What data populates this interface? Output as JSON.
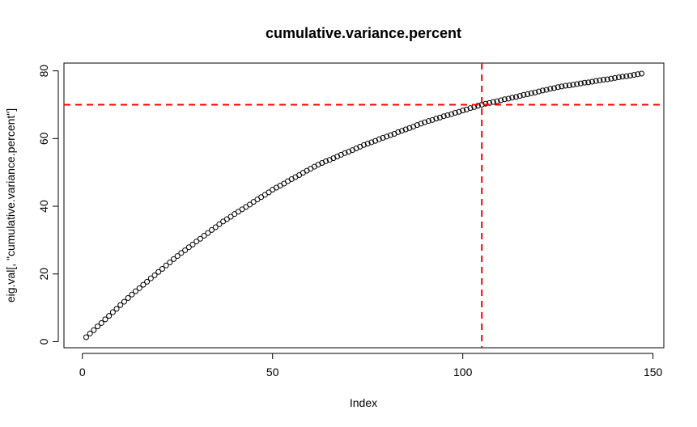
{
  "chart_data": {
    "type": "scatter",
    "title": "cumulative.variance.percent",
    "x_label": "Index",
    "y_label": "eig.val[, \"cumulative.variance.percent\"]",
    "x": [
      1,
      2,
      3,
      4,
      5,
      6,
      7,
      8,
      9,
      10,
      11,
      12,
      13,
      14,
      15,
      16,
      17,
      18,
      19,
      20,
      21,
      22,
      23,
      24,
      25,
      26,
      27,
      28,
      29,
      30,
      31,
      32,
      33,
      34,
      35,
      36,
      37,
      38,
      39,
      40,
      41,
      42,
      43,
      44,
      45,
      46,
      47,
      48,
      49,
      50,
      51,
      52,
      53,
      54,
      55,
      56,
      57,
      58,
      59,
      60,
      61,
      62,
      63,
      64,
      65,
      66,
      67,
      68,
      69,
      70,
      71,
      72,
      73,
      74,
      75,
      76,
      77,
      78,
      79,
      80,
      81,
      82,
      83,
      84,
      85,
      86,
      87,
      88,
      89,
      90,
      91,
      92,
      93,
      94,
      95,
      96,
      97,
      98,
      99,
      100,
      101,
      102,
      103,
      104,
      105,
      106,
      107,
      108,
      109,
      110,
      111,
      112,
      113,
      114,
      115,
      116,
      117,
      118,
      119,
      120,
      121,
      122,
      123,
      124,
      125,
      126,
      127,
      128,
      129,
      130,
      131,
      132,
      133,
      134,
      135,
      136,
      137,
      138,
      139,
      140,
      141,
      142,
      143,
      144,
      145,
      146,
      147
    ],
    "values": [
      1.3,
      2.4,
      3.4,
      4.5,
      5.5,
      6.6,
      7.6,
      8.7,
      9.7,
      10.8,
      11.8,
      12.9,
      13.9,
      14.9,
      15.8,
      16.8,
      17.7,
      18.7,
      19.6,
      20.6,
      21.5,
      22.5,
      23.4,
      24.4,
      25.3,
      26.2,
      27.0,
      27.9,
      28.7,
      29.6,
      30.4,
      31.3,
      32.1,
      33.0,
      33.8,
      34.7,
      35.5,
      36.2,
      36.9,
      37.7,
      38.4,
      39.1,
      39.8,
      40.5,
      41.3,
      42.0,
      42.7,
      43.4,
      44.1,
      44.9,
      45.5,
      46.1,
      46.7,
      47.4,
      48.0,
      48.6,
      49.2,
      49.9,
      50.5,
      51.1,
      51.7,
      52.3,
      52.8,
      53.3,
      53.7,
      54.2,
      54.7,
      55.2,
      55.7,
      56.1,
      56.6,
      57.1,
      57.6,
      58.1,
      58.5,
      58.9,
      59.3,
      59.8,
      60.2,
      60.6,
      61.0,
      61.4,
      61.9,
      62.3,
      62.7,
      63.1,
      63.5,
      64.0,
      64.4,
      64.8,
      65.2,
      65.5,
      65.9,
      66.2,
      66.6,
      66.9,
      67.2,
      67.6,
      67.9,
      68.3,
      68.6,
      69.0,
      69.3,
      69.7,
      70.0,
      70.3,
      70.5,
      70.8,
      71.0,
      71.3,
      71.6,
      71.8,
      72.1,
      72.3,
      72.6,
      72.9,
      73.1,
      73.4,
      73.6,
      73.9,
      74.2,
      74.4,
      74.7,
      74.9,
      75.2,
      75.4,
      75.6,
      75.7,
      75.9,
      76.1,
      76.3,
      76.5,
      76.6,
      76.8,
      77.0,
      77.2,
      77.4,
      77.5,
      77.7,
      77.9,
      78.1,
      78.3,
      78.4,
      78.6,
      78.8,
      79.0,
      79.2
    ],
    "color": "#000000",
    "hlines": [
      70
    ],
    "vlines": [
      105
    ],
    "ref_color": "#ff0000",
    "xlim": [
      -4.84,
      152.84
    ],
    "ylim": [
      -1.8,
      82.3
    ],
    "xticks": [
      0,
      50,
      100,
      150
    ],
    "yticks": [
      0,
      20,
      40,
      60,
      80
    ]
  }
}
